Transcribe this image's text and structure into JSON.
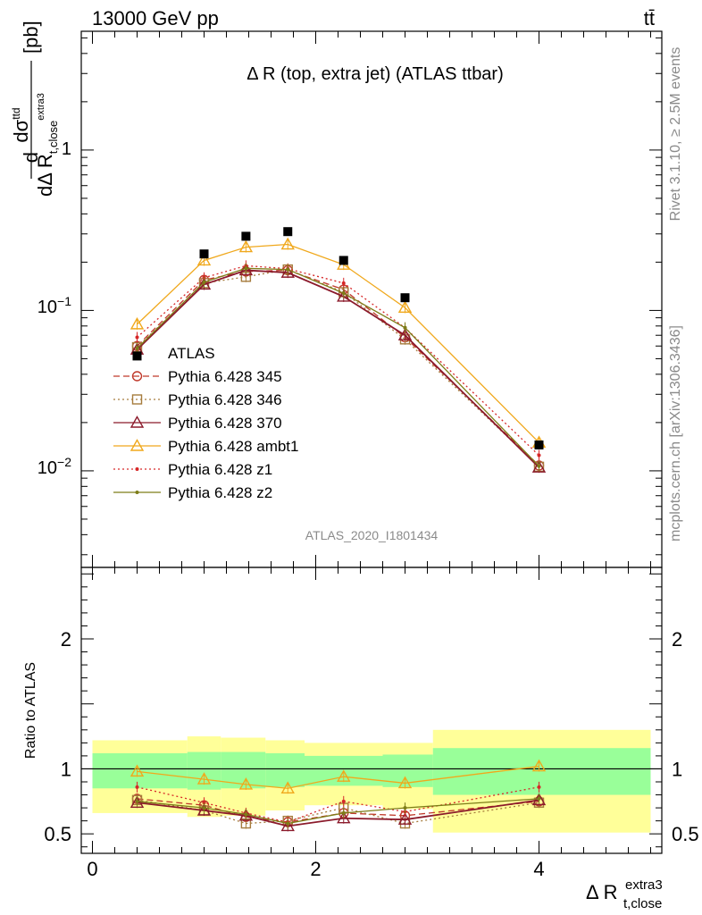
{
  "header": {
    "energy_label": "13000 GeV pp",
    "process_label": "tt̄"
  },
  "side_labels": {
    "rivet": "Rivet 3.1.10, ≥ 2.5M events",
    "mcplots": "mcplots.cern.ch [arXiv:1306.3436]"
  },
  "chart_data": [
    {
      "type": "line",
      "panel": "main",
      "title": "Δ R (top, extra jet) (ATLAS ttbar)",
      "analysis_tag": "ATLAS_2020_I1801434",
      "xlabel": "Δ R_{t,close}^{extra3}",
      "ylabel": "dσ^{ttd} / dΔ R_{t,close}^{extra3} [pb]",
      "yscale": "log",
      "xlim": [
        -0.1,
        5.1
      ],
      "ylim": [
        0.0025,
        5.5
      ],
      "ytick_labels": [
        {
          "v": 1,
          "label": "1"
        },
        {
          "v": 0.1,
          "label": "10^{-1}"
        },
        {
          "v": 0.01,
          "label": "10^{-2}"
        }
      ],
      "legend_position": "left-middle",
      "data": {
        "name": "ATLAS",
        "x": [
          0.4,
          1.0,
          1.375,
          1.75,
          2.25,
          2.8,
          4.0
        ],
        "y": [
          0.052,
          0.225,
          0.29,
          0.31,
          0.205,
          0.12,
          0.0145
        ]
      },
      "series": [
        {
          "name": "Pythia 6.428 345",
          "color": "#c0392b",
          "line": "dashed",
          "marker": "circle",
          "x": [
            0.4,
            1.0,
            1.375,
            1.75,
            2.25,
            2.8,
            4.0
          ],
          "y": [
            0.06,
            0.155,
            0.175,
            0.178,
            0.135,
            0.068,
            0.0108
          ]
        },
        {
          "name": "Pythia 6.428 346",
          "color": "#a67c3d",
          "line": "dotted",
          "marker": "square",
          "x": [
            0.4,
            1.0,
            1.375,
            1.75,
            2.25,
            2.8,
            4.0
          ],
          "y": [
            0.059,
            0.148,
            0.162,
            0.18,
            0.13,
            0.066,
            0.0106
          ]
        },
        {
          "name": "Pythia 6.428 370",
          "color": "#8b1a2b",
          "line": "solid",
          "marker": "triangle",
          "x": [
            0.4,
            1.0,
            1.375,
            1.75,
            2.25,
            2.8,
            4.0
          ],
          "y": [
            0.057,
            0.145,
            0.178,
            0.172,
            0.122,
            0.07,
            0.0105
          ]
        },
        {
          "name": "Pythia 6.428 ambt1",
          "color": "#f0a81c",
          "line": "solid",
          "marker": "triangle",
          "x": [
            0.4,
            1.0,
            1.375,
            1.75,
            2.25,
            2.8,
            4.0
          ],
          "y": [
            0.082,
            0.205,
            0.248,
            0.258,
            0.193,
            0.104,
            0.015
          ]
        },
        {
          "name": "Pythia 6.428 z1",
          "color": "#d62728",
          "line": "dotted",
          "marker": "dot",
          "x": [
            0.4,
            1.0,
            1.375,
            1.75,
            2.25,
            2.8,
            4.0
          ],
          "y": [
            0.068,
            0.16,
            0.19,
            0.182,
            0.148,
            0.078,
            0.0125
          ]
        },
        {
          "name": "Pythia 6.428 z2",
          "color": "#7d7d18",
          "line": "solid",
          "marker": "dot",
          "x": [
            0.4,
            1.0,
            1.375,
            1.75,
            2.25,
            2.8,
            4.0
          ],
          "y": [
            0.058,
            0.15,
            0.183,
            0.18,
            0.128,
            0.078,
            0.0107
          ]
        }
      ]
    },
    {
      "type": "line",
      "panel": "ratio",
      "ylabel": "Ratio to ATLAS",
      "xlabel": "Δ R_{t,close}^{extra3}",
      "xlim": [
        -0.1,
        5.1
      ],
      "ylim": [
        0.35,
        2.55
      ],
      "xtick_labels": [
        {
          "v": 0,
          "label": "0"
        },
        {
          "v": 2,
          "label": "2"
        },
        {
          "v": 4,
          "label": "4"
        }
      ],
      "ytick_labels": [
        {
          "v": 0.5,
          "label": "0.5"
        },
        {
          "v": 1,
          "label": "1"
        },
        {
          "v": 2,
          "label": "2"
        }
      ],
      "bins": [
        0.0,
        0.85,
        1.15,
        1.55,
        1.9,
        2.6,
        3.05,
        5.0
      ],
      "band_inner": {
        "color": "#99ff99",
        "low": [
          0.85,
          0.84,
          0.85,
          0.86,
          0.87,
          0.86,
          0.8
        ],
        "high": [
          1.12,
          1.13,
          1.13,
          1.12,
          1.1,
          1.11,
          1.16
        ]
      },
      "band_outer": {
        "color": "#ffff99",
        "low": [
          0.66,
          0.63,
          0.64,
          0.68,
          0.72,
          0.69,
          0.51
        ],
        "high": [
          1.22,
          1.25,
          1.24,
          1.22,
          1.2,
          1.2,
          1.3
        ]
      },
      "series": [
        {
          "name": "Pythia 6.428 345",
          "color": "#c0392b",
          "line": "dashed",
          "marker": "circle",
          "x": [
            0.4,
            1.0,
            1.375,
            1.75,
            2.25,
            2.8,
            4.0
          ],
          "y": [
            0.77,
            0.72,
            0.63,
            0.59,
            0.66,
            0.64,
            0.75
          ]
        },
        {
          "name": "Pythia 6.428 346",
          "color": "#a67c3d",
          "line": "dotted",
          "marker": "square",
          "x": [
            0.4,
            1.0,
            1.375,
            1.75,
            2.25,
            2.8,
            4.0
          ],
          "y": [
            0.76,
            0.68,
            0.58,
            0.6,
            0.7,
            0.58,
            0.74
          ]
        },
        {
          "name": "Pythia 6.428 370",
          "color": "#8b1a2b",
          "line": "solid",
          "marker": "triangle",
          "x": [
            0.4,
            1.0,
            1.375,
            1.75,
            2.25,
            2.8,
            4.0
          ],
          "y": [
            0.74,
            0.68,
            0.64,
            0.56,
            0.62,
            0.61,
            0.76
          ]
        },
        {
          "name": "Pythia 6.428 ambt1",
          "color": "#f0a81c",
          "line": "solid",
          "marker": "triangle",
          "x": [
            0.4,
            1.0,
            1.375,
            1.75,
            2.25,
            2.8,
            4.0
          ],
          "y": [
            0.98,
            0.92,
            0.88,
            0.85,
            0.94,
            0.89,
            1.02
          ]
        },
        {
          "name": "Pythia 6.428 z1",
          "color": "#d62728",
          "line": "dotted",
          "marker": "dot",
          "x": [
            0.4,
            1.0,
            1.375,
            1.75,
            2.25,
            2.8,
            4.0
          ],
          "y": [
            0.86,
            0.74,
            0.66,
            0.59,
            0.75,
            0.67,
            0.86
          ]
        },
        {
          "name": "Pythia 6.428 z2",
          "color": "#7d7d18",
          "line": "solid",
          "marker": "dot",
          "x": [
            0.4,
            1.0,
            1.375,
            1.75,
            2.25,
            2.8,
            4.0
          ],
          "y": [
            0.75,
            0.7,
            0.65,
            0.58,
            0.66,
            0.7,
            0.77
          ]
        }
      ]
    }
  ]
}
